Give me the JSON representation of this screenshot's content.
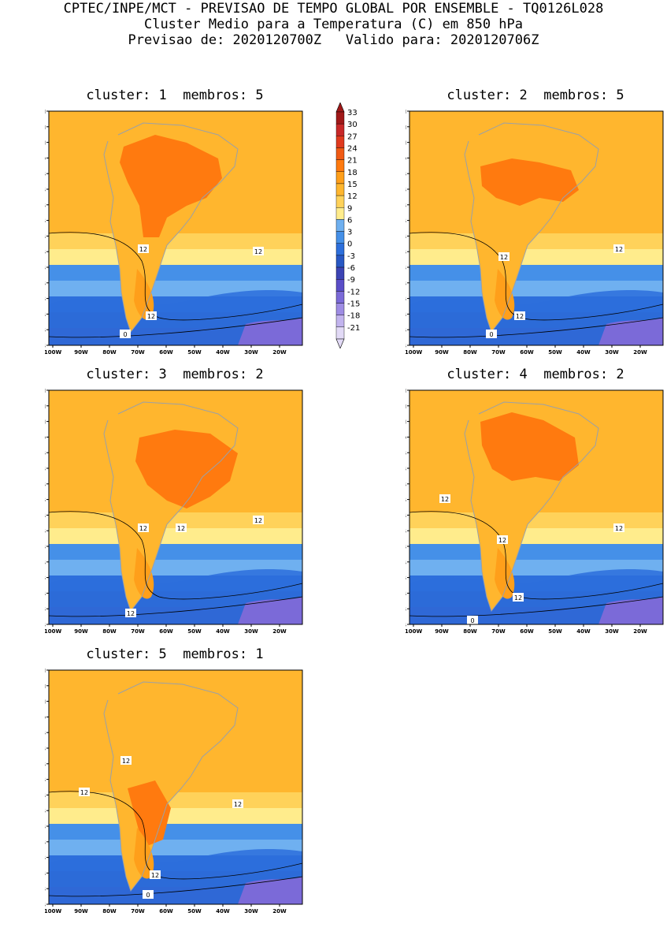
{
  "header": {
    "line1": "CPTEC/INPE/MCT - PREVISAO DE TEMPO GLOBAL POR ENSEMBLE - TQ0126L028",
    "line2": "Cluster Medio para a Temperatura (C) em 850 hPa",
    "line3": "Previsao de: 2020120700Z   Valido para: 2020120706Z"
  },
  "panels": [
    {
      "title": "cluster: 1  membros: 5",
      "contour_labels": [
        "12",
        "12",
        "12",
        "0"
      ]
    },
    {
      "title": "cluster: 2  membros: 5",
      "contour_labels": [
        "12",
        "12",
        "12",
        "0"
      ]
    },
    {
      "title": "cluster: 3  membros: 2",
      "contour_labels": [
        "12",
        "12",
        "12",
        "12",
        "0"
      ]
    },
    {
      "title": "cluster: 4  membros: 2",
      "contour_labels": [
        "12",
        "12",
        "12",
        "12",
        "0",
        "0"
      ]
    },
    {
      "title": "cluster: 5  membros: 1",
      "contour_labels": [
        "12",
        "12",
        "12",
        "12",
        "0"
      ]
    }
  ],
  "axes": {
    "lat_ticks": [
      "15N",
      "10N",
      "5N",
      "EQ",
      "5S",
      "10S",
      "15S",
      "20S",
      "25S",
      "30S",
      "35S",
      "40S",
      "45S",
      "50S",
      "55S",
      "60S"
    ],
    "lon_ticks": [
      "100W",
      "90W",
      "80W",
      "70W",
      "60W",
      "50W",
      "40W",
      "30W",
      "20W"
    ]
  },
  "colorbar": {
    "labels": [
      "33",
      "30",
      "27",
      "24",
      "21",
      "18",
      "15",
      "12",
      "9",
      "6",
      "3",
      "0",
      "-3",
      "-6",
      "-9",
      "-12",
      "-15",
      "-18",
      "-21"
    ],
    "colors": [
      "#a01818",
      "#c82828",
      "#e03a1e",
      "#f05a14",
      "#ff7a0f",
      "#ff9f1a",
      "#ffb62e",
      "#ffd25a",
      "#ffec8c",
      "#6fb0f0",
      "#4590e8",
      "#2d6fdc",
      "#2858c4",
      "#3c44b4",
      "#5a4ec8",
      "#7b6ad8",
      "#9e8ce4",
      "#c2b4ee",
      "#e2daf6"
    ]
  }
}
